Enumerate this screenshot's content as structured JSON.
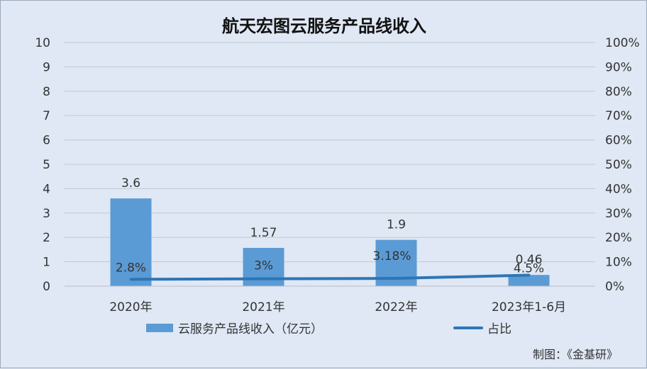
{
  "chart_data": {
    "type": "bar",
    "title": "航天宏图云服务产品线收入",
    "categories": [
      "2020年",
      "2021年",
      "2022年",
      "2023年1-6月"
    ],
    "series": [
      {
        "name": "云服务产品线收入（亿元）",
        "type": "bar",
        "axis": "left",
        "values": [
          3.6,
          1.57,
          1.9,
          0.46
        ],
        "labels": [
          "3.6",
          "1.57",
          "1.9",
          "0.46"
        ],
        "color": "#5b9bd5"
      },
      {
        "name": "占比",
        "type": "line",
        "axis": "right",
        "values": [
          2.8,
          3,
          3.18,
          4.5
        ],
        "labels": [
          "2.8%",
          "3%",
          "3.18%",
          "4.5%"
        ],
        "color": "#2e75b6"
      }
    ],
    "y_left": {
      "ylim": [
        0,
        10
      ],
      "ticks": [
        "0",
        "1",
        "2",
        "3",
        "4",
        "5",
        "6",
        "7",
        "8",
        "9",
        "10"
      ]
    },
    "y_right": {
      "ylim": [
        0,
        100
      ],
      "ticks": [
        "0%",
        "10%",
        "20%",
        "30%",
        "40%",
        "50%",
        "60%",
        "70%",
        "80%",
        "90%",
        "100%"
      ]
    },
    "grid": true,
    "legend_position": "bottom",
    "background": "#dfe8f4"
  },
  "credit": "制图：《金基研》"
}
